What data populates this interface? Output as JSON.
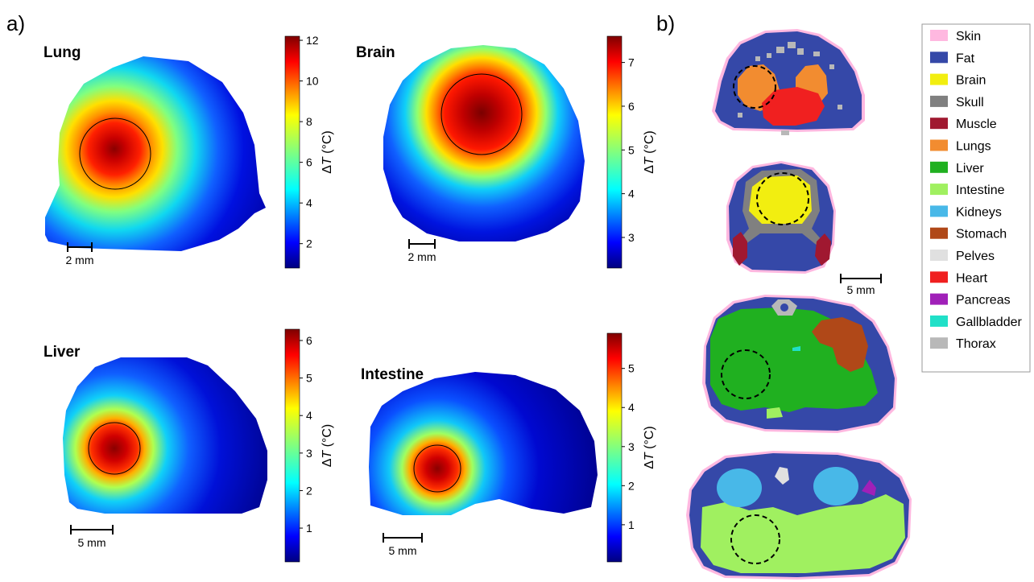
{
  "panel_a_label": "a)",
  "panel_b_label": "b)",
  "colorbar_label_prefix": "Δ",
  "colorbar_label_var": "T",
  "colorbar_label_unit": " (°C)",
  "maps": [
    {
      "title": "Lung",
      "scale_label": "2 mm",
      "ticks": [
        "2",
        "4",
        "6",
        "8",
        "10",
        "12"
      ],
      "range": [
        0.8,
        12.2
      ]
    },
    {
      "title": "Brain",
      "scale_label": "2 mm",
      "ticks": [
        "3",
        "4",
        "5",
        "6",
        "7"
      ],
      "range": [
        2.3,
        7.6
      ]
    },
    {
      "title": "Liver",
      "scale_label": "5 mm",
      "ticks": [
        "1",
        "2",
        "3",
        "4",
        "5",
        "6"
      ],
      "range": [
        0.1,
        6.3
      ]
    },
    {
      "title": "Intestine",
      "scale_label": "5 mm",
      "ticks": [
        "1",
        "2",
        "3",
        "4",
        "5"
      ],
      "range": [
        0.05,
        5.9
      ]
    }
  ],
  "section_scale_label": "5 mm",
  "colors": {
    "skin": "#ffb8e0",
    "fat": "#3548a8",
    "brain": "#f2ee10",
    "skull": "#808080",
    "muscle": "#a01830",
    "lungs": "#f28c30",
    "liver": "#20b020",
    "intestine": "#a0f060",
    "kidneys": "#48b8e8",
    "stomach": "#b04818",
    "pelves": "#e0e0e0",
    "heart": "#f02020",
    "pancreas": "#a020b8",
    "gallbladder": "#20e0c8",
    "thorax": "#b8b8b8"
  },
  "legend": [
    {
      "label": "Skin",
      "key": "skin"
    },
    {
      "label": "Fat",
      "key": "fat"
    },
    {
      "label": "Brain",
      "key": "brain"
    },
    {
      "label": "Skull",
      "key": "skull"
    },
    {
      "label": "Muscle",
      "key": "muscle"
    },
    {
      "label": "Lungs",
      "key": "lungs"
    },
    {
      "label": "Liver",
      "key": "liver"
    },
    {
      "label": "Intestine",
      "key": "intestine"
    },
    {
      "label": "Kidneys",
      "key": "kidneys"
    },
    {
      "label": "Stomach",
      "key": "stomach"
    },
    {
      "label": "Pelves",
      "key": "pelves"
    },
    {
      "label": "Heart",
      "key": "heart"
    },
    {
      "label": "Pancreas",
      "key": "pancreas"
    },
    {
      "label": "Gallbladder",
      "key": "gallbladder"
    },
    {
      "label": "Thorax",
      "key": "thorax"
    }
  ]
}
